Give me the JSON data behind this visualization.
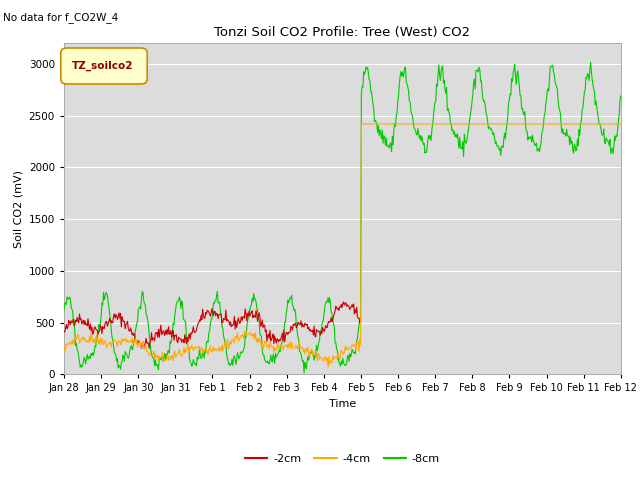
{
  "title": "Tonzi Soil CO2 Profile: Tree (West) CO2",
  "no_data_text": "No data for f_CO2W_4",
  "xlabel": "Time",
  "ylabel": "Soil CO2 (mV)",
  "ylim": [
    0,
    3200
  ],
  "yticks": [
    0,
    500,
    1000,
    1500,
    2000,
    2500,
    3000
  ],
  "background_color": "#dcdcdc",
  "legend_box_color": "#ffffcc",
  "legend_box_text": "TZ_soilco2",
  "line_colors": {
    "2cm": "#cc0000",
    "4cm": "#ffaa00",
    "8cm": "#00cc00"
  },
  "legend_entries": [
    "-2cm",
    "-4cm",
    "-8cm"
  ],
  "xtick_labels": [
    "Jan 28",
    "Jan 29",
    "Jan 30",
    "Jan 31",
    "Feb 1",
    "Feb 2",
    "Feb 3",
    "Feb 4",
    "Feb 5",
    "Feb 6",
    "Feb 7",
    "Feb 8",
    "Feb 9",
    "Feb 10",
    "Feb 11",
    "Feb 12"
  ],
  "xtick_positions": [
    0,
    1,
    2,
    3,
    4,
    5,
    6,
    7,
    8,
    9,
    10,
    11,
    12,
    13,
    14,
    15
  ],
  "figsize": [
    6.4,
    4.8
  ],
  "dpi": 100
}
